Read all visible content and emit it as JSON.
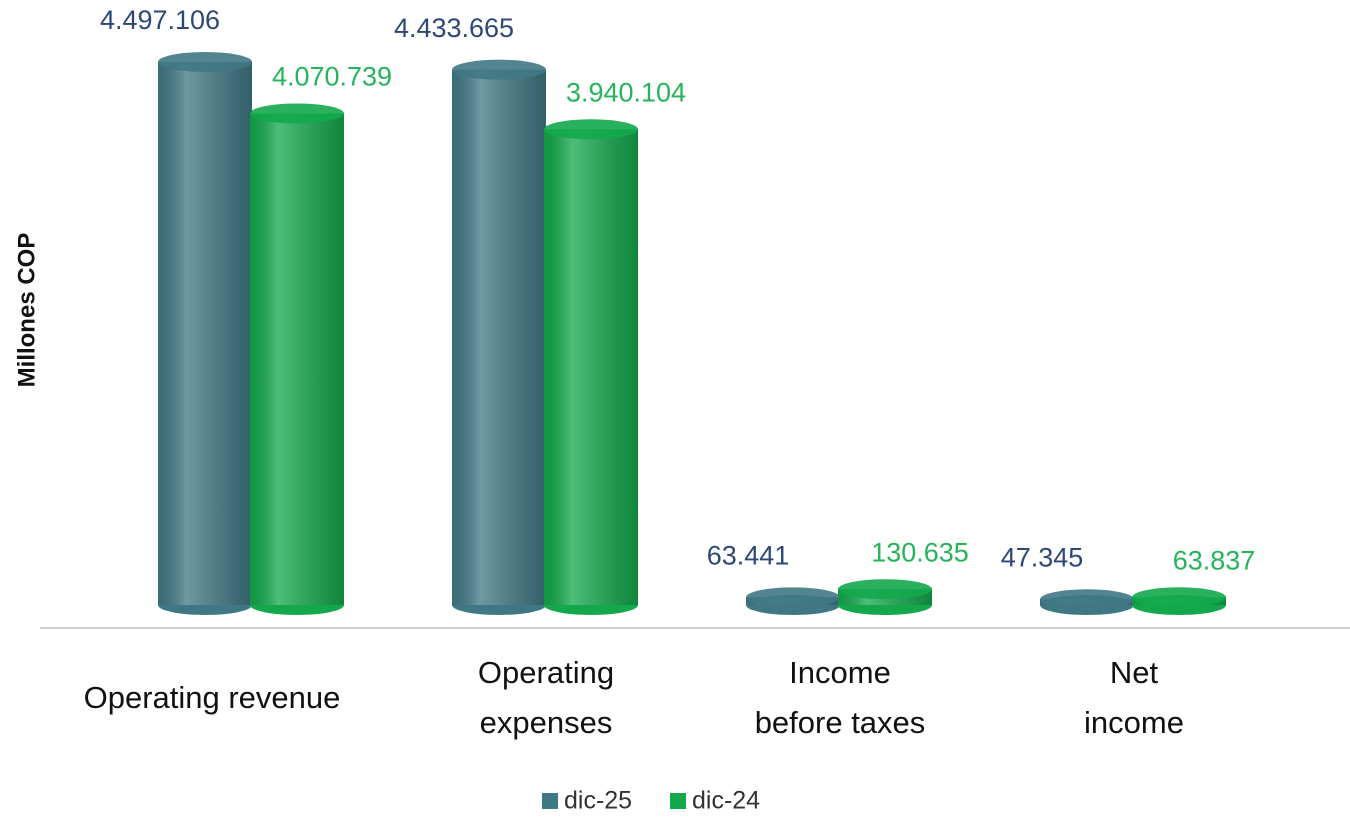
{
  "chart_data": {
    "type": "bar",
    "y_label": "Millones COP",
    "categories": [
      "Operating revenue",
      "Operating\nexpenses",
      "Income\nbefore taxes",
      "Net\nincome"
    ],
    "series": [
      {
        "name": "dic-25",
        "color": "#3f7884",
        "label_color": "#2d4877",
        "values": [
          4497106,
          4433665,
          63441,
          47345
        ],
        "value_labels": [
          "4.497.106",
          "4.433.665",
          "63.441",
          "47.345"
        ]
      },
      {
        "name": "dic-24",
        "color": "#13a84c",
        "label_color": "#26b45a",
        "values": [
          4070739,
          3940104,
          130635,
          63837
        ],
        "value_labels": [
          "4.070.739",
          "3.940.104",
          "130.635",
          "63.837"
        ]
      }
    ]
  }
}
